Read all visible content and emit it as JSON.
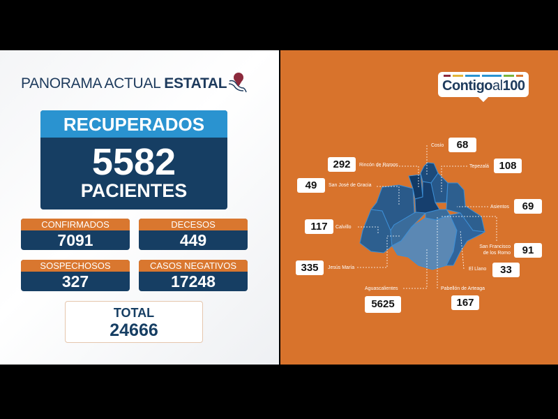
{
  "header": {
    "title_light": "PANORAMA ACTUAL",
    "title_bold": "ESTATAL"
  },
  "recuperados": {
    "label": "RECUPERADOS",
    "value": "5582",
    "unit": "PACIENTES"
  },
  "stats": [
    {
      "label": "CONFIRMADOS",
      "value": "7091"
    },
    {
      "label": "DECESOS",
      "value": "449"
    },
    {
      "label": "SOSPECHOSOS",
      "value": "327"
    },
    {
      "label": "CASOS NEGATIVOS",
      "value": "17248"
    }
  ],
  "total": {
    "label": "TOTAL",
    "value": "24666"
  },
  "logo": {
    "main": "Contigo",
    "light": "al",
    "num": "100",
    "bar_colors": [
      "#8c2a3c",
      "#e2b53a",
      "#2a93d0",
      "#2a93d0",
      "#7bb33a",
      "#d9772f"
    ]
  },
  "colors": {
    "orange": "#d8732c",
    "navy": "#163e63",
    "blue": "#2a93d0"
  },
  "municipios": [
    {
      "name": "Cosío",
      "value": "68"
    },
    {
      "name": "Rincón de Romos",
      "value": "292"
    },
    {
      "name": "Tepezalá",
      "value": "108"
    },
    {
      "name": "San José de Gracia",
      "value": "49"
    },
    {
      "name": "Asientos",
      "value": "69"
    },
    {
      "name": "Calvillo",
      "value": "117"
    },
    {
      "name": "San Francisco de los Romo",
      "value": "91"
    },
    {
      "name": "El Llano",
      "value": "33"
    },
    {
      "name": "Jesús María",
      "value": "335"
    },
    {
      "name": "Aguascalientes",
      "value": "5625"
    },
    {
      "name": "Pabellón de Arteaga",
      "value": "167"
    }
  ]
}
